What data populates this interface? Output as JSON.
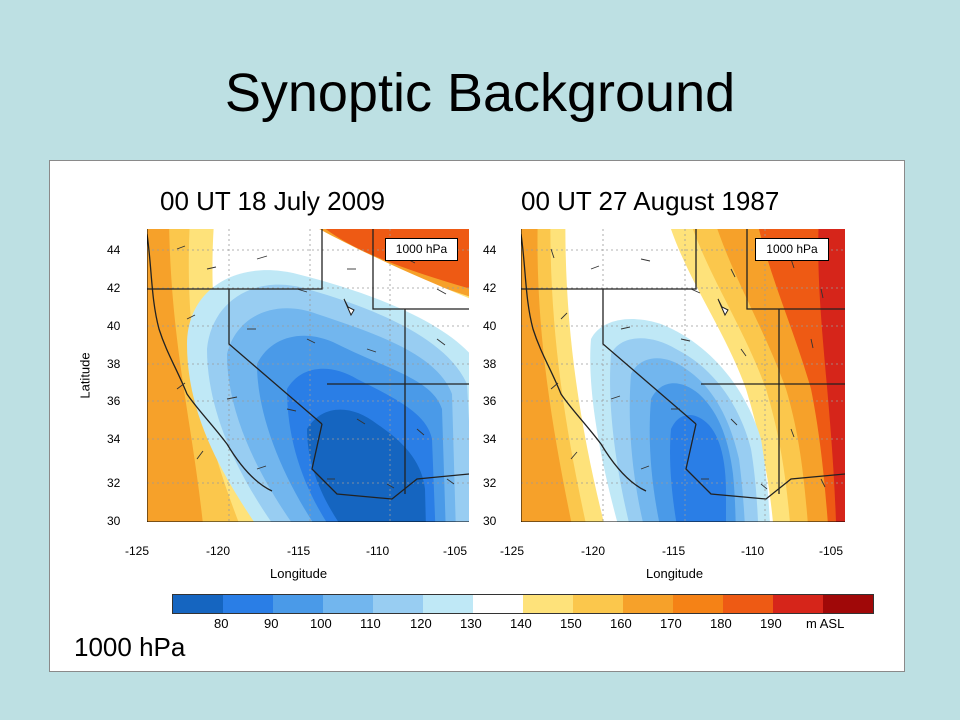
{
  "title": "Synoptic Background",
  "footer_label": "1000 hPa",
  "maps": [
    {
      "title": "00 UT  18 July 2009",
      "level_label": "1000 hPa"
    },
    {
      "title": "00 UT  27 August 1987",
      "level_label": "1000 hPa"
    }
  ],
  "axes": {
    "xlabel": "Longitude",
    "ylabel": "Latitude",
    "xticks": [
      "-125",
      "-120",
      "-115",
      "-110",
      "-105"
    ],
    "yticks": [
      "44",
      "42",
      "40",
      "38",
      "36",
      "34",
      "32",
      "30"
    ]
  },
  "colorbar": {
    "colors": [
      "#1565c0",
      "#2a7ee6",
      "#4a9ae8",
      "#72b6ee",
      "#98cdf2",
      "#bfe8f6",
      "#ffffff",
      "#fee27a",
      "#fbc74c",
      "#f6a12a",
      "#f58216",
      "#ee5a14",
      "#d6251a",
      "#a00808"
    ],
    "tick_labels": [
      "80",
      "90",
      "100",
      "110",
      "120",
      "130",
      "140",
      "150",
      "160",
      "170",
      "180",
      "190"
    ],
    "units": "m ASL"
  }
}
